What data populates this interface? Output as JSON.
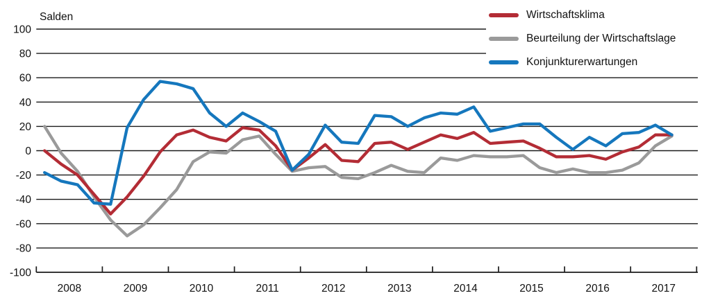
{
  "chart_data": {
    "type": "line",
    "title": "Salden",
    "ylabel": "Salden",
    "ylim": [
      -100,
      100
    ],
    "yticks": [
      100,
      80,
      60,
      40,
      20,
      0,
      -20,
      -40,
      -60,
      -80,
      -100
    ],
    "x_years": [
      "2008",
      "2009",
      "2010",
      "2011",
      "2012",
      "2013",
      "2014",
      "2015",
      "2016",
      "2017"
    ],
    "x_frequency": "quarterly",
    "grid": true,
    "legend_position": "top-right",
    "axis_color": "#1a1a1a",
    "series": [
      {
        "name": "Wirtschaftsklima",
        "color": "#b32c35",
        "values": [
          0,
          -11,
          -20,
          -36,
          -52,
          -38,
          -21,
          -1,
          13,
          17,
          11,
          8,
          19,
          17,
          4,
          -16,
          -6,
          5,
          -8,
          -9,
          6,
          7,
          1,
          7,
          13,
          10,
          15,
          6,
          7,
          8,
          2,
          -5,
          -5,
          -4,
          -7,
          -1,
          3,
          13,
          13
        ]
      },
      {
        "name": "Beurteilung der Wirtschaftslage",
        "color": "#9a9a9a",
        "values": [
          20,
          -2,
          -17,
          -38,
          -57,
          -70,
          -61,
          -47,
          -32,
          -9,
          -1,
          -2,
          9,
          12,
          -3,
          -17,
          -14,
          -13,
          -22,
          -23,
          -18,
          -12,
          -17,
          -18,
          -6,
          -8,
          -4,
          -5,
          -5,
          -4,
          -14,
          -18,
          -15,
          -18,
          -18,
          -16,
          -10,
          4,
          12
        ]
      },
      {
        "name": "Konjunkturerwartungen",
        "color": "#1577bd",
        "values": [
          -18,
          -25,
          -28,
          -43,
          -44,
          19,
          42,
          57,
          55,
          51,
          31,
          20,
          31,
          24,
          16,
          -16,
          -3,
          21,
          7,
          6,
          29,
          28,
          20,
          27,
          31,
          30,
          36,
          16,
          19,
          22,
          22,
          11,
          1,
          11,
          4,
          14,
          15,
          21,
          13
        ]
      }
    ],
    "draw_order": [
      1,
      0,
      2
    ]
  }
}
